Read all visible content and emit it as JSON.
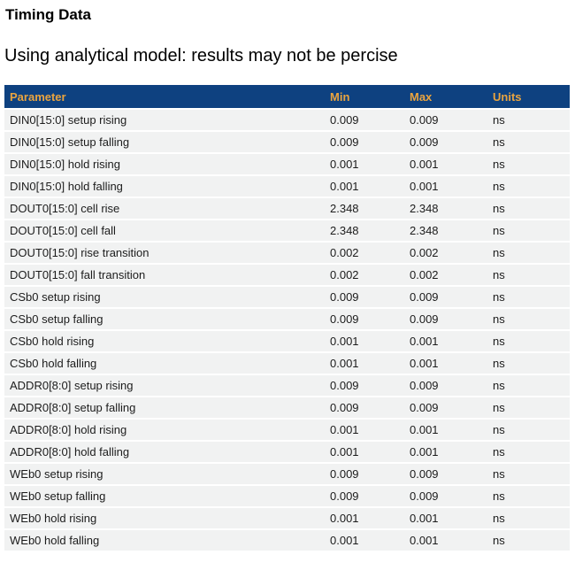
{
  "page": {
    "title": "Timing Data",
    "subtitle": "Using analytical model: results may not be percise"
  },
  "table": {
    "columns": [
      "Parameter",
      "Min",
      "Max",
      "Units"
    ],
    "rows": [
      {
        "parameter": "DIN0[15:0] setup rising",
        "min": "0.009",
        "max": "0.009",
        "units": "ns"
      },
      {
        "parameter": "DIN0[15:0] setup falling",
        "min": "0.009",
        "max": "0.009",
        "units": "ns"
      },
      {
        "parameter": "DIN0[15:0] hold rising",
        "min": "0.001",
        "max": "0.001",
        "units": "ns"
      },
      {
        "parameter": "DIN0[15:0] hold falling",
        "min": "0.001",
        "max": "0.001",
        "units": "ns"
      },
      {
        "parameter": "DOUT0[15:0] cell rise",
        "min": "2.348",
        "max": "2.348",
        "units": "ns"
      },
      {
        "parameter": "DOUT0[15:0] cell fall",
        "min": "2.348",
        "max": "2.348",
        "units": "ns"
      },
      {
        "parameter": "DOUT0[15:0] rise transition",
        "min": "0.002",
        "max": "0.002",
        "units": "ns"
      },
      {
        "parameter": "DOUT0[15:0] fall transition",
        "min": "0.002",
        "max": "0.002",
        "units": "ns"
      },
      {
        "parameter": "CSb0 setup rising",
        "min": "0.009",
        "max": "0.009",
        "units": "ns"
      },
      {
        "parameter": "CSb0 setup falling",
        "min": "0.009",
        "max": "0.009",
        "units": "ns"
      },
      {
        "parameter": "CSb0 hold rising",
        "min": "0.001",
        "max": "0.001",
        "units": "ns"
      },
      {
        "parameter": "CSb0 hold falling",
        "min": "0.001",
        "max": "0.001",
        "units": "ns"
      },
      {
        "parameter": "ADDR0[8:0] setup rising",
        "min": "0.009",
        "max": "0.009",
        "units": "ns"
      },
      {
        "parameter": "ADDR0[8:0] setup falling",
        "min": "0.009",
        "max": "0.009",
        "units": "ns"
      },
      {
        "parameter": "ADDR0[8:0] hold rising",
        "min": "0.001",
        "max": "0.001",
        "units": "ns"
      },
      {
        "parameter": "ADDR0[8:0] hold falling",
        "min": "0.001",
        "max": "0.001",
        "units": "ns"
      },
      {
        "parameter": "WEb0 setup rising",
        "min": "0.009",
        "max": "0.009",
        "units": "ns"
      },
      {
        "parameter": "WEb0 setup falling",
        "min": "0.009",
        "max": "0.009",
        "units": "ns"
      },
      {
        "parameter": "WEb0 hold rising",
        "min": "0.001",
        "max": "0.001",
        "units": "ns"
      },
      {
        "parameter": "WEb0 hold falling",
        "min": "0.001",
        "max": "0.001",
        "units": "ns"
      }
    ]
  },
  "colors": {
    "header_bg": "#0e4180",
    "header_text": "#eaa43f",
    "row_bg": "#f1f2f2",
    "row_text": "#1c1c1c"
  }
}
